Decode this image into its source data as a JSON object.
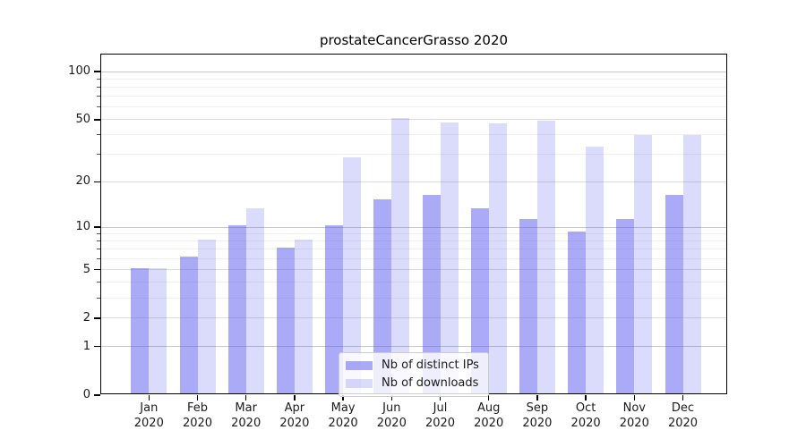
{
  "title": "prostateCancerGrasso 2020",
  "colors": {
    "background": "#ffffff",
    "axis": "#000000",
    "text": "#1a1a1a",
    "grid_power10": "#c8c8c8",
    "grid_major": "#dcdcdc",
    "grid_minor": "#efefef",
    "legend_border": "#cccccc",
    "ips_bar": "rgba(85,85,238,0.5)",
    "downloads_bar": "rgba(85,85,238,0.21)"
  },
  "chart_data": {
    "type": "bar",
    "title": "prostateCancerGrasso 2020",
    "categories": [
      "Jan 2020",
      "Feb 2020",
      "Mar 2020",
      "Apr 2020",
      "May 2020",
      "Jun 2020",
      "Jul 2020",
      "Aug 2020",
      "Sep 2020",
      "Oct 2020",
      "Nov 2020",
      "Dec 2020"
    ],
    "series": [
      {
        "name": "Nb of distinct IPs",
        "key": "ips",
        "values": [
          5,
          6,
          10,
          7,
          10,
          15,
          16,
          13,
          11,
          9,
          11,
          16
        ],
        "color": "rgba(85,85,238,0.5)"
      },
      {
        "name": "Nb of downloads",
        "key": "downloads",
        "values": [
          5,
          8,
          13,
          8,
          28,
          50,
          47,
          46,
          48,
          33,
          39,
          39
        ],
        "color": "rgba(85,85,238,0.21)"
      }
    ],
    "xlabel": "",
    "ylabel": "",
    "scale": "log10(value+1)",
    "ylim": [
      0,
      128
    ],
    "y_tick_values": [
      100,
      50,
      20,
      10,
      5,
      2,
      1,
      0
    ],
    "y_tick_labels": [
      "100",
      "50",
      "20",
      "10",
      "5",
      "2",
      "1",
      "0"
    ],
    "y_minor_ticks": [
      90,
      80,
      70,
      60,
      40,
      30,
      9,
      8,
      7,
      6,
      4,
      3
    ],
    "grid": "on",
    "legend_position": "lower center"
  }
}
